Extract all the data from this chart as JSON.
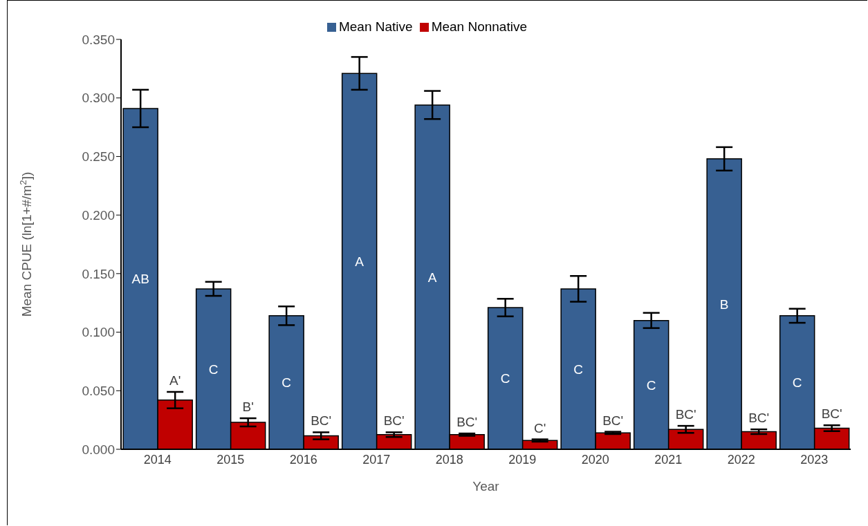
{
  "chart_data": {
    "type": "bar",
    "xlabel": "Year",
    "ylabel": "Mean CPUE (ln[1+#/m$^{2}$])",
    "categories": [
      "2014",
      "2015",
      "2016",
      "2017",
      "2018",
      "2019",
      "2020",
      "2021",
      "2022",
      "2023"
    ],
    "series": [
      {
        "name": "Mean Native",
        "color": "#376092",
        "values": [
          0.291,
          0.137,
          0.114,
          0.321,
          0.294,
          0.121,
          0.137,
          0.11,
          0.248,
          0.114
        ],
        "errors": [
          0.016,
          0.006,
          0.008,
          0.014,
          0.012,
          0.0075,
          0.011,
          0.0065,
          0.01,
          0.006
        ],
        "value_labels": [
          "AB",
          "C",
          "C",
          "A",
          "A",
          "C",
          "C",
          "C",
          "B",
          "C"
        ]
      },
      {
        "name": "Mean Nonnative",
        "color": "#c00000",
        "values": [
          0.042,
          0.023,
          0.0115,
          0.0125,
          0.0125,
          0.0075,
          0.014,
          0.017,
          0.015,
          0.018
        ],
        "errors": [
          0.007,
          0.0035,
          0.003,
          0.002,
          0.001,
          0.001,
          0.001,
          0.003,
          0.002,
          0.0025
        ],
        "value_labels": [
          "A'",
          "B'",
          "BC'",
          "BC'",
          "BC'",
          "C'",
          "BC'",
          "BC'",
          "BC'",
          "BC'"
        ]
      }
    ],
    "ylim": [
      0,
      0.35
    ],
    "yticks": [
      {
        "value": 0,
        "label": "0.000"
      },
      {
        "value": 0.05,
        "label": "0.050"
      },
      {
        "value": 0.1,
        "label": "0.100"
      },
      {
        "value": 0.15,
        "label": "0.150"
      },
      {
        "value": 0.2,
        "label": "0.200"
      },
      {
        "value": 0.25,
        "label": "0.250"
      },
      {
        "value": 0.3,
        "label": "0.300"
      },
      {
        "value": 0.35,
        "label": "0.350"
      }
    ],
    "grid": false,
    "legend": "top"
  }
}
